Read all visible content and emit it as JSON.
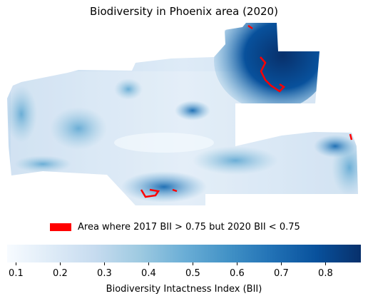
{
  "title": "Biodiversity in Phoenix area (2020)",
  "legend": {
    "label": "Area where 2017 BII > 0.75 but 2020 BII < 0.75",
    "color": "#ff0000"
  },
  "colorbar": {
    "label": "Biodiversity Intactness Index (BII)",
    "colormap": "Blues",
    "range": [
      0.08,
      0.88
    ],
    "ticks": [
      "0.1",
      "0.2",
      "0.3",
      "0.4",
      "0.5",
      "0.6",
      "0.7",
      "0.8"
    ],
    "colors": [
      "#f7fbff",
      "#deebf7",
      "#c6dbef",
      "#9ecae1",
      "#6baed6",
      "#4292c6",
      "#2171b5",
      "#08519c",
      "#08306b"
    ]
  }
}
